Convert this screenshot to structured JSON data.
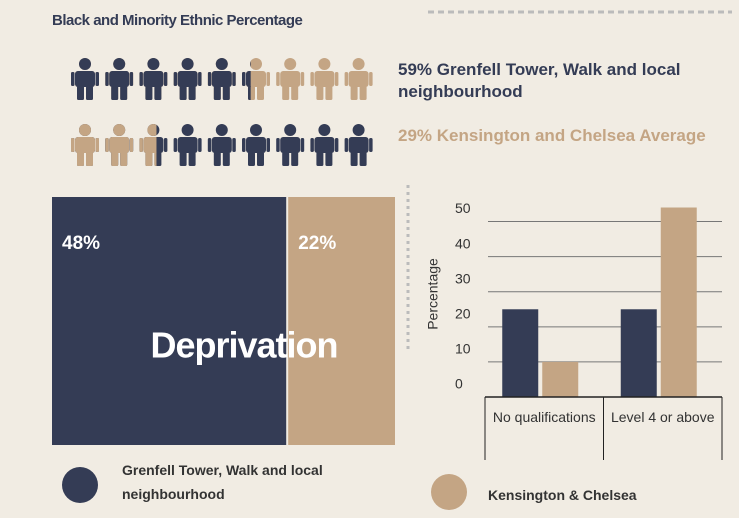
{
  "title": "Black and Minority Ethnic Percentage",
  "chart_data": [
    {
      "type": "pictogram",
      "series": [
        {
          "name": "Grenfell Tower, Walk and local neighbourhood",
          "color": "#343c55",
          "values": [
            59
          ],
          "value_labels": [
            "59%"
          ]
        },
        {
          "name": "Kensington and Chelsea Average",
          "color": "#c4a584",
          "values": [
            29
          ],
          "value_labels": [
            "29%"
          ]
        }
      ]
    },
    {
      "type": "proportion",
      "title": "Deprivation",
      "series": [
        {
          "color": "#343c55",
          "values": [
            48
          ],
          "value_labels": [
            "48%"
          ]
        },
        {
          "color": "#c4a584",
          "values": [
            22
          ],
          "value_labels": [
            "22%"
          ]
        }
      ]
    },
    {
      "type": "bar",
      "ylabel": "Percentage",
      "categories": [
        "No qualifications",
        "Level 4 or above"
      ],
      "ylim": [
        0,
        55
      ],
      "yticks": [
        0,
        10,
        20,
        30,
        40,
        50
      ],
      "grid": true,
      "series": [
        {
          "name": "Grenfell Tower, Walk and local neighbourhood",
          "color": "#343c55",
          "values": [
            25,
            25
          ]
        },
        {
          "name": "Kensington & Chelsea",
          "color": "#c4a584",
          "values": [
            10,
            54
          ]
        }
      ]
    }
  ]
}
